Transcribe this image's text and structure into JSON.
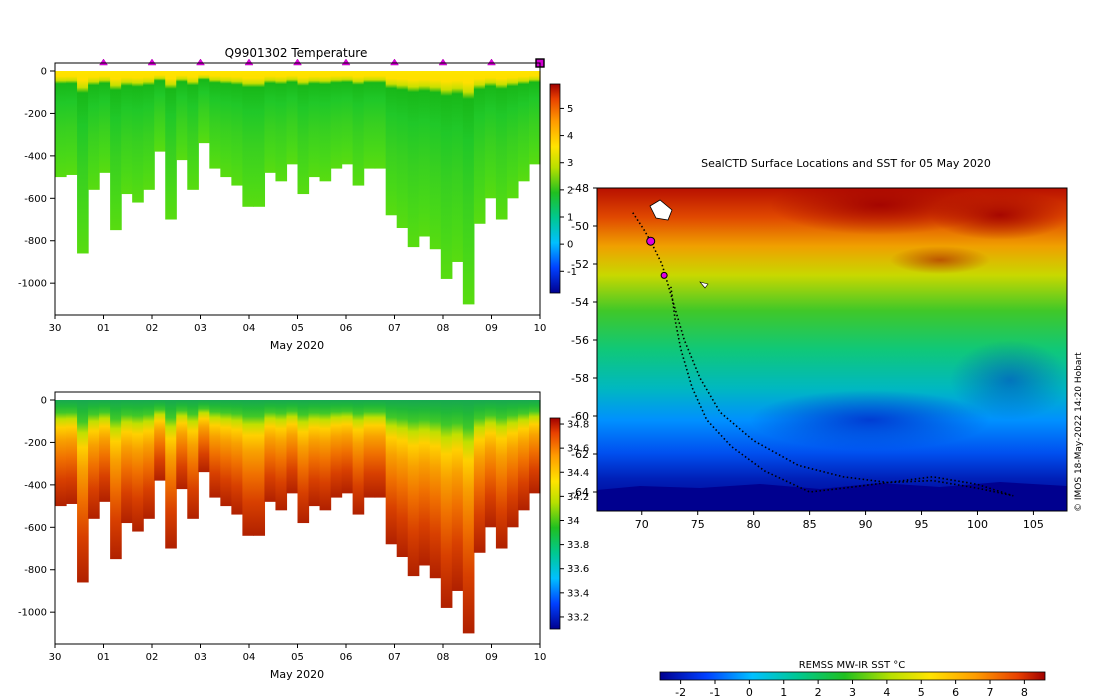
{
  "chart_data": [
    {
      "type": "heatmap",
      "title": "Q9901302  Temperature",
      "xlabel": "May 2020",
      "x_ticks": [
        "30",
        "01",
        "02",
        "03",
        "04",
        "05",
        "06",
        "07",
        "08",
        "09",
        "10"
      ],
      "y_ticks": [
        0,
        -200,
        -400,
        -600,
        -800,
        -1000
      ],
      "ylim": [
        -1150,
        0
      ],
      "colorbar_ticks": [
        5,
        4,
        3,
        2,
        1,
        0,
        -1
      ],
      "colorbar_range": [
        -1.8,
        5.9
      ],
      "profile_depths": [
        -500,
        -490,
        -860,
        -560,
        -480,
        -750,
        -580,
        -620,
        -560,
        -380,
        -700,
        -420,
        -560,
        -340,
        -460,
        -500,
        -540,
        -640,
        -640,
        -480,
        -520,
        -440,
        -580,
        -500,
        -520,
        -460,
        -440,
        -540,
        -460,
        -460,
        -680,
        -740,
        -830,
        -780,
        -840,
        -980,
        -900,
        -1100,
        -720,
        -600,
        -700,
        -600,
        -520,
        -440
      ],
      "surface_markers": [
        "01",
        "02",
        "03",
        "04",
        "05",
        "06",
        "07",
        "08",
        "09",
        "10"
      ]
    },
    {
      "type": "heatmap",
      "title": "",
      "xlabel": "May 2020",
      "x_ticks": [
        "30",
        "01",
        "02",
        "03",
        "04",
        "05",
        "06",
        "07",
        "08",
        "09",
        "10"
      ],
      "y_ticks": [
        0,
        -200,
        -400,
        -600,
        -800,
        -1000
      ],
      "ylim": [
        -1150,
        0
      ],
      "colorbar_ticks": [
        34.8,
        34.6,
        34.4,
        34.2,
        34,
        33.8,
        33.6,
        33.4,
        33.2
      ],
      "colorbar_range": [
        33.1,
        34.85
      ],
      "profile_depths": [
        -500,
        -490,
        -860,
        -560,
        -480,
        -750,
        -580,
        -620,
        -560,
        -380,
        -700,
        -420,
        -560,
        -340,
        -460,
        -500,
        -540,
        -640,
        -640,
        -480,
        -520,
        -440,
        -580,
        -500,
        -520,
        -460,
        -440,
        -540,
        -460,
        -460,
        -680,
        -740,
        -830,
        -780,
        -840,
        -980,
        -900,
        -1100,
        -720,
        -600,
        -700,
        -600,
        -520,
        -440
      ]
    },
    {
      "type": "heatmap",
      "title": "SealCTD Surface Locations and SST for 05 May 2020",
      "xlim": [
        66,
        108
      ],
      "ylim": [
        -65,
        -48
      ],
      "x_ticks": [
        70,
        75,
        80,
        85,
        90,
        95,
        100,
        105
      ],
      "y_ticks": [
        -48,
        -50,
        -52,
        -54,
        -56,
        -58,
        -60,
        -62,
        -64
      ],
      "colorbar_label": "REMSS MW-IR SST °C",
      "colorbar_ticks": [
        -2,
        -1,
        0,
        1,
        2,
        3,
        4,
        5,
        6,
        7,
        8
      ],
      "colorbar_range": [
        -2.6,
        8.6
      ],
      "track": [
        [
          69.2,
          -49.3
        ],
        [
          70.2,
          -50.2
        ],
        [
          70.8,
          -50.8
        ],
        [
          71.8,
          -52.0
        ],
        [
          72.2,
          -52.8
        ],
        [
          72.8,
          -54.0
        ],
        [
          73.8,
          -56.0
        ],
        [
          75.2,
          -58.0
        ],
        [
          77.0,
          -59.8
        ],
        [
          80.0,
          -61.3
        ],
        [
          84.0,
          -62.6
        ],
        [
          88.0,
          -63.2
        ],
        [
          92.0,
          -63.5
        ],
        [
          96.0,
          -63.4
        ],
        [
          100.0,
          -63.8
        ],
        [
          103.2,
          -64.2
        ],
        [
          100.0,
          -63.6
        ],
        [
          96.0,
          -63.2
        ],
        [
          92.0,
          -63.5
        ],
        [
          88.0,
          -63.8
        ],
        [
          85.0,
          -64.0
        ],
        [
          81.0,
          -62.9
        ],
        [
          78.0,
          -61.6
        ],
        [
          75.8,
          -60.2
        ],
        [
          74.5,
          -58.5
        ],
        [
          73.5,
          -56.5
        ],
        [
          73.0,
          -55.0
        ],
        [
          72.6,
          -53.2
        ]
      ],
      "highlight_points": [
        [
          70.8,
          -50.8
        ],
        [
          72.0,
          -52.6
        ]
      ]
    }
  ],
  "credit": "© IMOS 18-May-2022 14:20 Hobart"
}
